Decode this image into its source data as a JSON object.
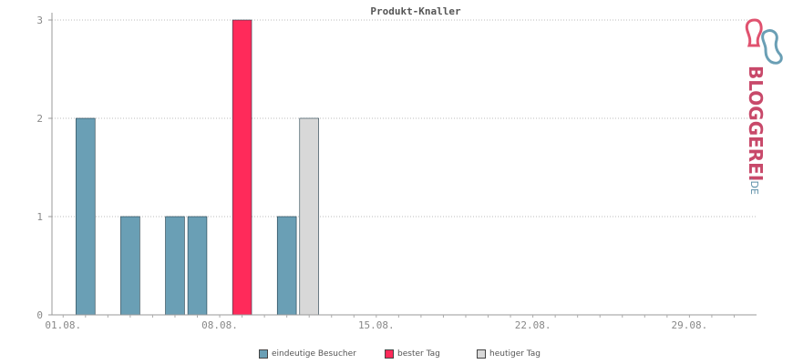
{
  "chart_data": {
    "type": "bar",
    "title": "Produkt-Knaller",
    "xlabel": "",
    "ylabel": "",
    "ylim": [
      0,
      3
    ],
    "yticks": [
      "0",
      "1",
      "2",
      "3"
    ],
    "grid": true,
    "legend_position": "bottom",
    "xticks": [
      {
        "day": 1,
        "label": "01.08."
      },
      {
        "day": 8,
        "label": "08.08."
      },
      {
        "day": 15,
        "label": "15.08."
      },
      {
        "day": 22,
        "label": "22.08."
      },
      {
        "day": 29,
        "label": "29.08."
      }
    ],
    "series": [
      {
        "name": "eindeutige Besucher",
        "color": "#6a9fb5",
        "points": [
          {
            "day": 2,
            "value": 2
          },
          {
            "day": 4,
            "value": 1
          },
          {
            "day": 6,
            "value": 1
          },
          {
            "day": 7,
            "value": 1
          },
          {
            "day": 11,
            "value": 1
          }
        ]
      },
      {
        "name": "bester Tag",
        "color": "#ff2a5a",
        "points": [
          {
            "day": 9,
            "value": 3
          }
        ]
      },
      {
        "name": "heutiger Tag",
        "color": "#d8d8d8",
        "points": [
          {
            "day": 12,
            "value": 2
          }
        ]
      }
    ]
  },
  "brand": {
    "logo_text": "BLOGGEREI",
    "logo_suffix": ".DE"
  }
}
